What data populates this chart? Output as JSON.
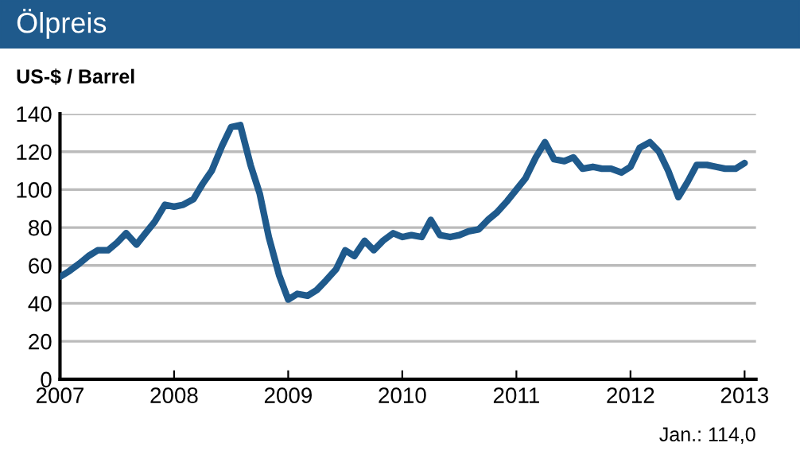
{
  "chart_data": {
    "type": "line",
    "title": "Ölpreis",
    "ylabel": "US-$ / Barrel",
    "annotations": [
      "Jan.: 114,0"
    ],
    "x": [
      2007.0,
      2007.08,
      2007.17,
      2007.25,
      2007.33,
      2007.42,
      2007.5,
      2007.58,
      2007.67,
      2007.75,
      2007.83,
      2007.92,
      2008.0,
      2008.08,
      2008.17,
      2008.25,
      2008.33,
      2008.42,
      2008.5,
      2008.58,
      2008.67,
      2008.75,
      2008.83,
      2008.92,
      2009.0,
      2009.08,
      2009.17,
      2009.25,
      2009.33,
      2009.42,
      2009.5,
      2009.58,
      2009.67,
      2009.75,
      2009.83,
      2009.92,
      2010.0,
      2010.08,
      2010.17,
      2010.25,
      2010.33,
      2010.42,
      2010.5,
      2010.58,
      2010.67,
      2010.75,
      2010.83,
      2010.92,
      2011.0,
      2011.08,
      2011.17,
      2011.25,
      2011.33,
      2011.42,
      2011.5,
      2011.58,
      2011.67,
      2011.75,
      2011.83,
      2011.92,
      2012.0,
      2012.08,
      2012.17,
      2012.25,
      2012.33,
      2012.42,
      2012.5,
      2012.58,
      2012.67,
      2012.75,
      2012.83,
      2012.92,
      2013.0
    ],
    "series": [
      {
        "color": "#1f5a8c",
        "values": [
          54,
          57,
          61,
          65,
          68,
          68,
          72,
          77,
          71,
          77,
          83,
          92,
          91,
          92,
          95,
          103,
          110,
          123,
          133,
          134,
          113,
          98,
          75,
          55,
          42,
          45,
          44,
          47,
          52,
          58,
          68,
          65,
          73,
          68,
          73,
          77,
          75,
          76,
          75,
          84,
          76,
          75,
          76,
          78,
          79,
          84,
          88,
          94,
          100,
          106,
          117,
          125,
          116,
          115,
          117,
          111,
          112,
          111,
          111,
          109,
          112,
          122,
          125,
          120,
          110,
          96,
          104,
          113,
          113,
          112,
          111,
          111,
          114
        ]
      }
    ],
    "xlim": [
      2007,
      2013.1
    ],
    "xticks": [
      2007,
      2008,
      2009,
      2010,
      2011,
      2012,
      2013
    ],
    "ylim": [
      0,
      140
    ],
    "yticks": [
      0,
      20,
      40,
      60,
      80,
      100,
      120,
      140
    ],
    "grid": "y",
    "legend": false,
    "marker": "none",
    "line_style": "solid"
  }
}
